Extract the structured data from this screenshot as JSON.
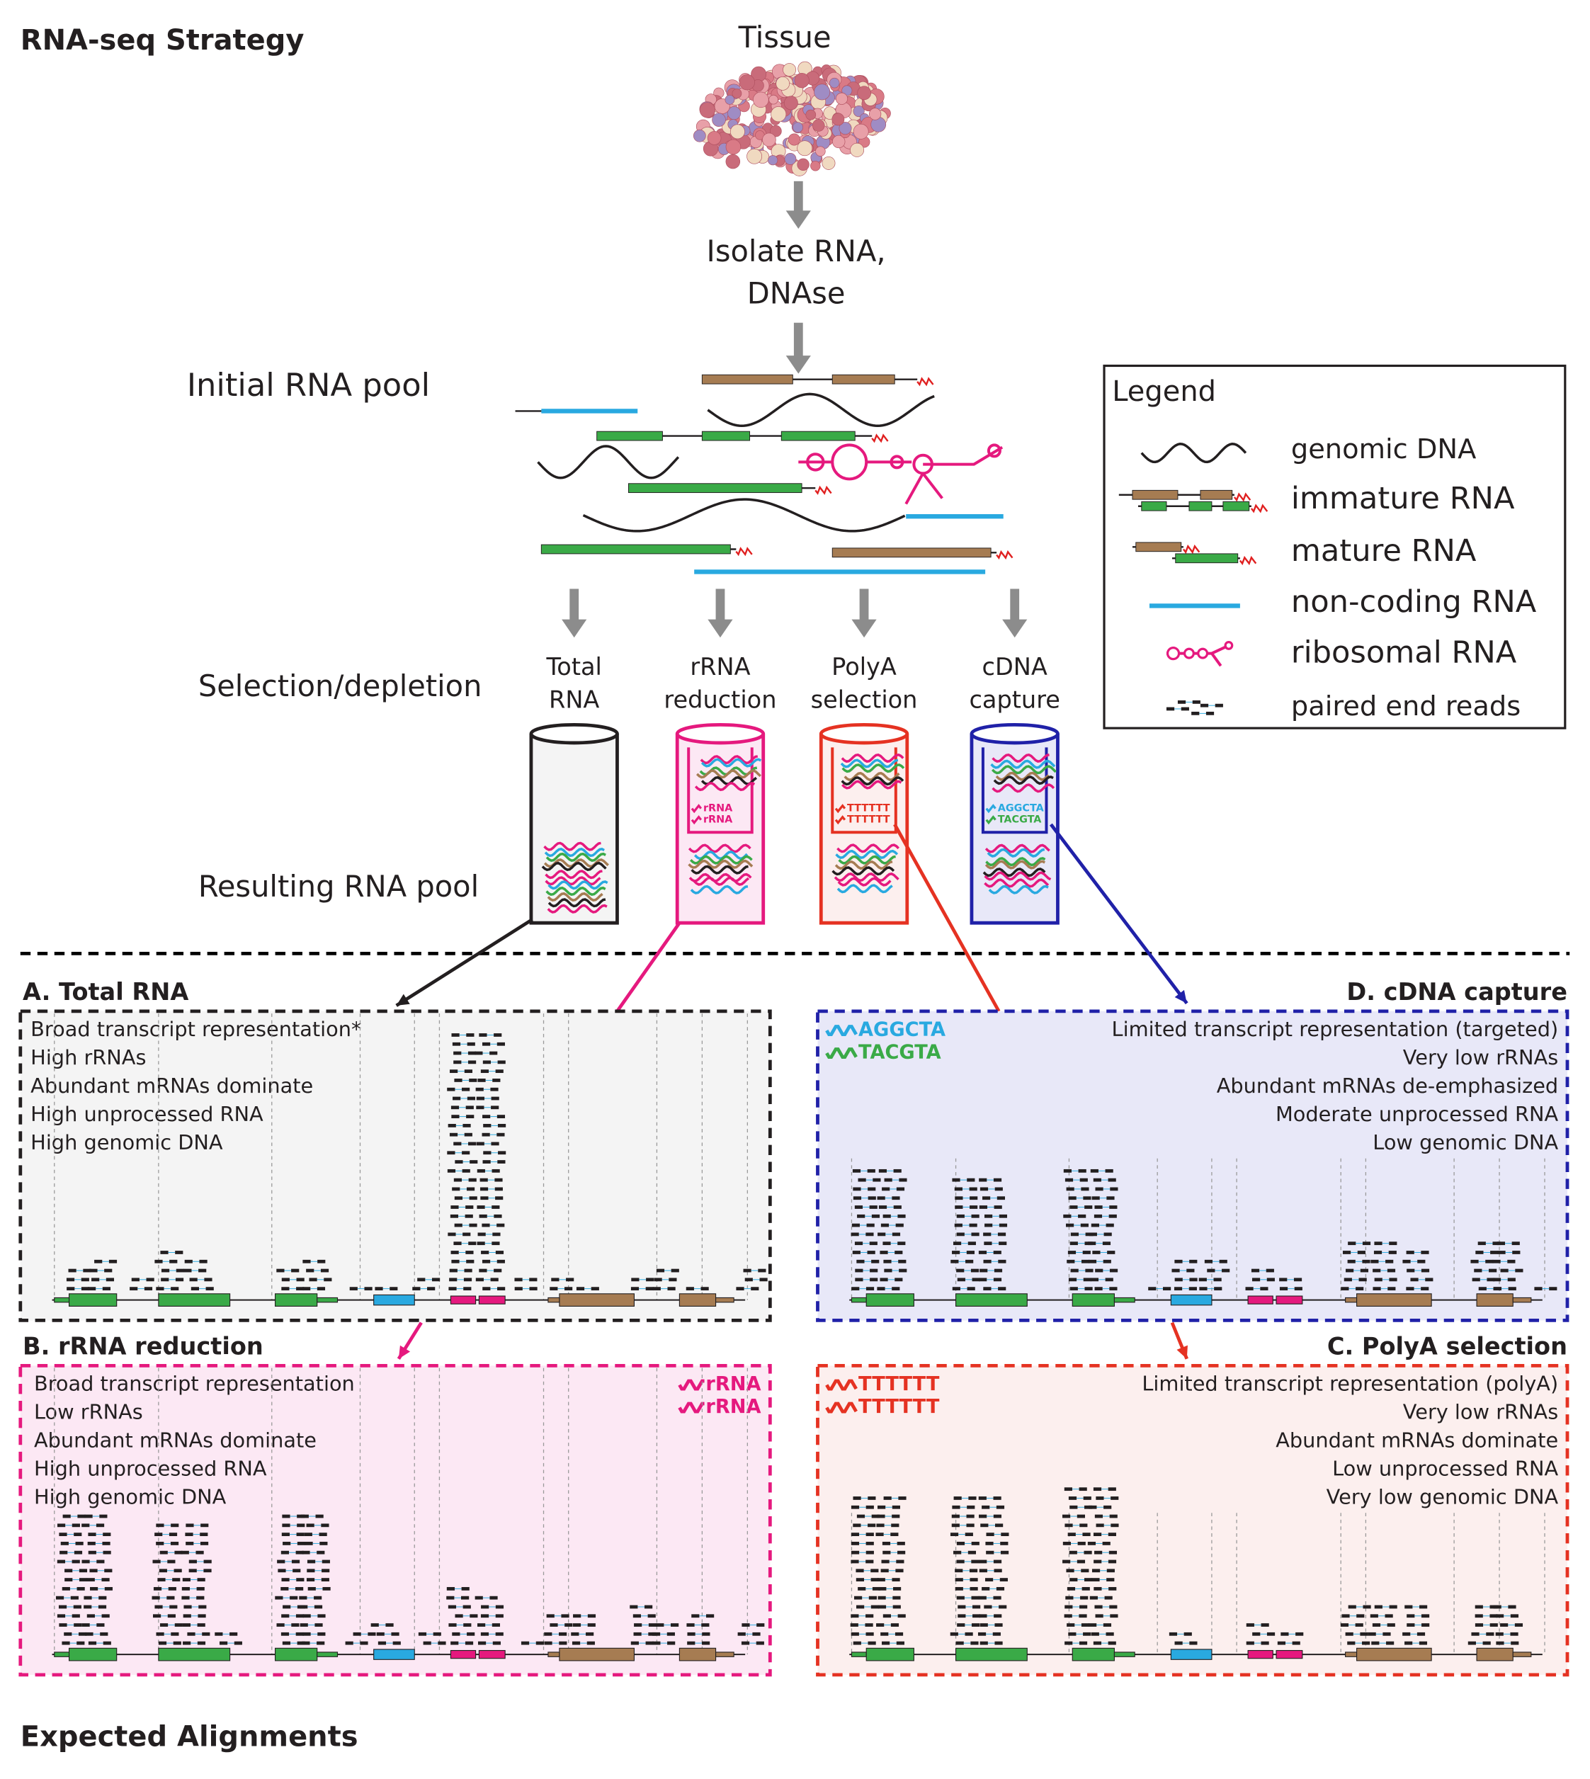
{
  "title": "RNA-seq Strategy",
  "footer": "Expected Alignments",
  "steps": {
    "tissue": "Tissue",
    "isolate": [
      "Isolate RNA,",
      "DNAse"
    ]
  },
  "stage_labels": [
    "Initial RNA pool",
    "Selection/depletion",
    "Resulting RNA pool"
  ],
  "methods": [
    {
      "label": [
        "Total",
        "RNA"
      ]
    },
    {
      "label": [
        "rRNA",
        "reduction"
      ]
    },
    {
      "label": [
        "PolyA",
        "selection"
      ]
    },
    {
      "label": [
        "cDNA",
        "capture"
      ]
    }
  ],
  "legend": {
    "title": "Legend",
    "items": [
      "genomic DNA",
      "immature RNA",
      "mature RNA",
      "non-coding RNA",
      "ribosomal RNA",
      "paired end reads"
    ]
  },
  "panels": [
    {
      "title": "A. Total RNA",
      "notes": [
        "Broad transcript representation*",
        "High rRNAs",
        "Abundant mRNAs dominate",
        "High unprocessed RNA",
        "High genomic DNA"
      ],
      "tags": []
    },
    {
      "title": "B. rRNA reduction",
      "notes": [
        "Broad transcript representation",
        "Low rRNAs",
        "Abundant mRNAs dominate",
        "High unprocessed RNA",
        "High genomic DNA"
      ],
      "tags": [
        "rRNA",
        "rRNA"
      ]
    },
    {
      "title": "C. PolyA selection",
      "notes": [
        "Limited transcript representation (polyA)",
        "Very low rRNAs",
        "Abundant mRNAs dominate",
        "Low unprocessed RNA",
        "Very low genomic DNA"
      ],
      "tags": [
        "TTTTTT",
        "TTTTTT"
      ]
    },
    {
      "title": "D. cDNA capture",
      "notes": [
        "Limited transcript representation (targeted)",
        "Very low rRNAs",
        "Abundant mRNAs de-emphasized",
        "Moderate unprocessed RNA",
        "Low genomic DNA"
      ],
      "tags": [
        "AGGCTA",
        "TACGTA"
      ]
    }
  ]
}
